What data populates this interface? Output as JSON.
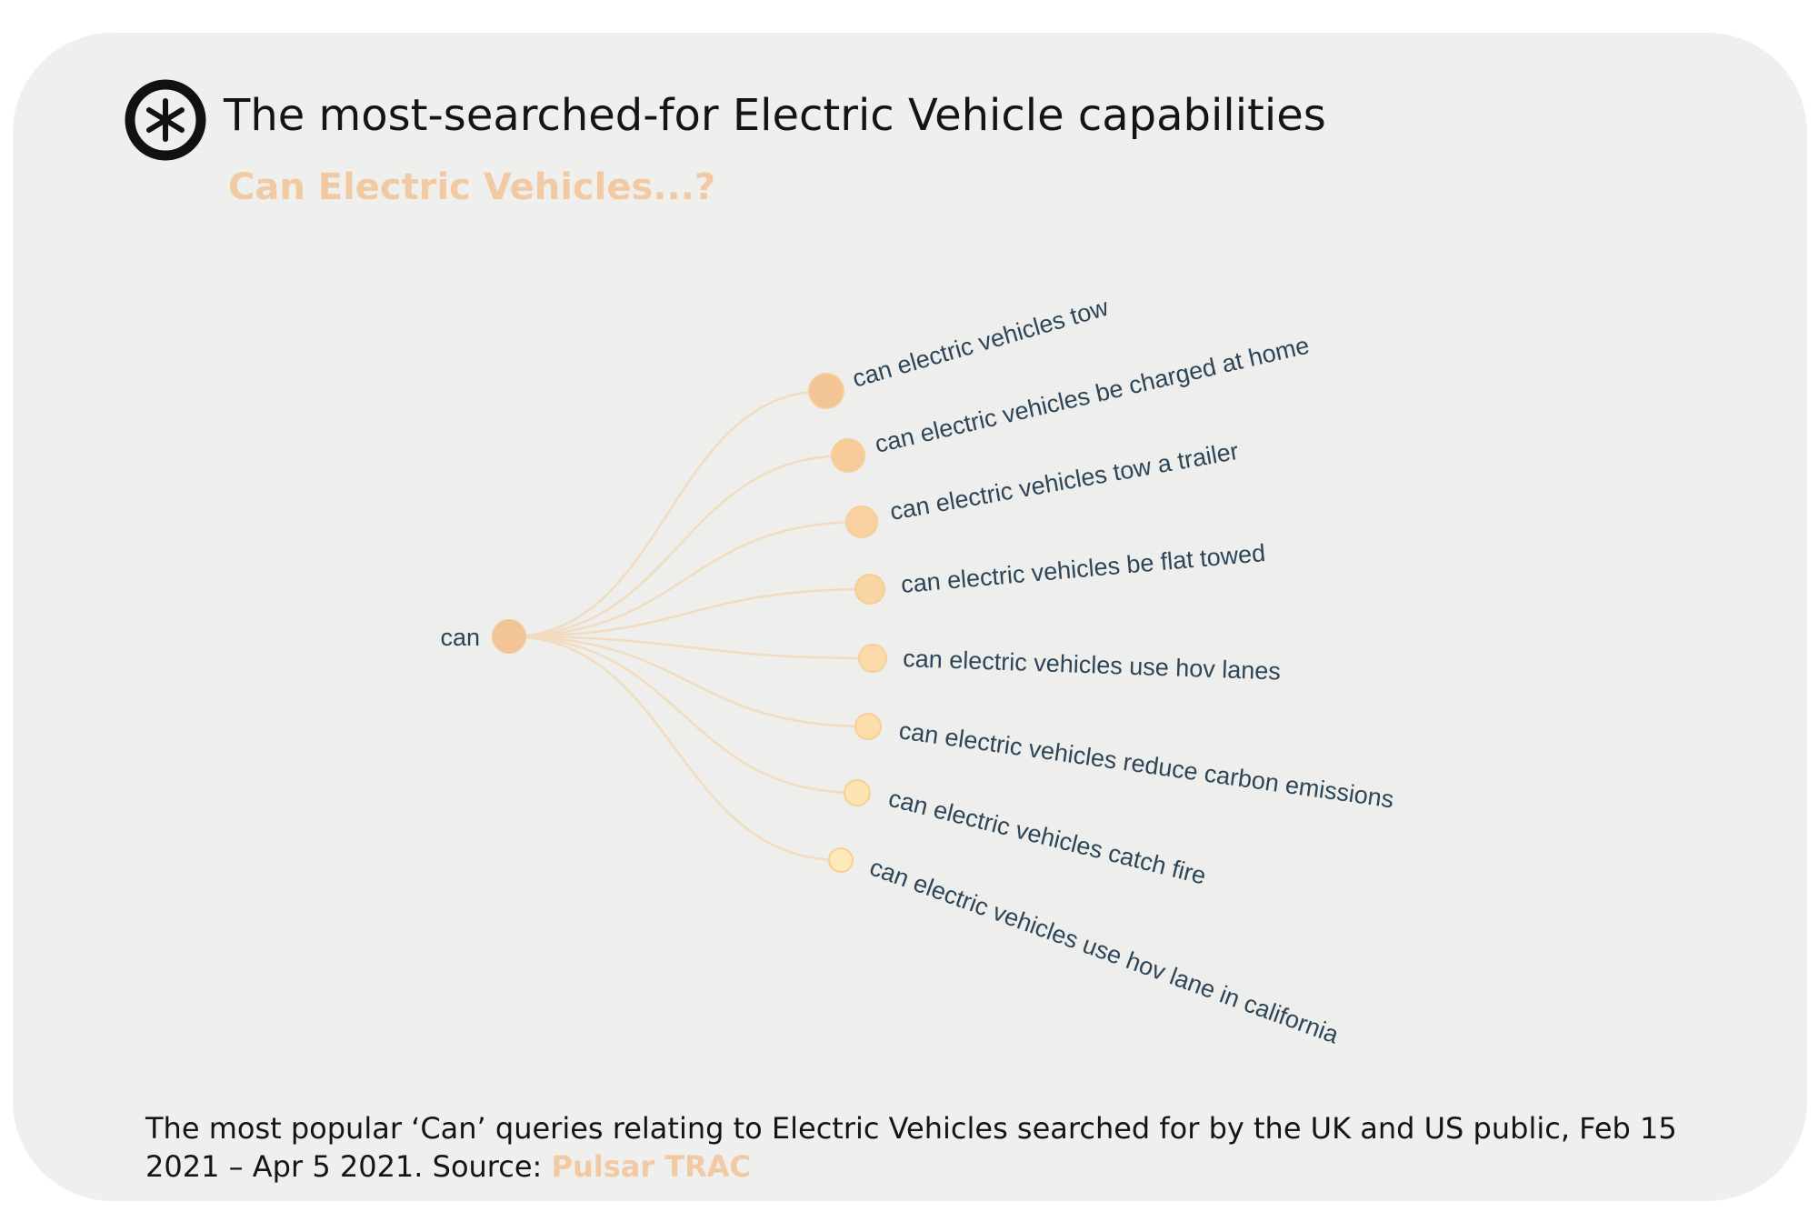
{
  "header": {
    "title": "The most-searched-for Electric Vehicle capabilities",
    "subtitle": "Can Electric Vehicles...?"
  },
  "logo": {
    "icon": "asterisk-circle-logo-icon"
  },
  "tree": {
    "root": {
      "label": "can",
      "color": "#f3c496"
    },
    "children": [
      {
        "label": "can electric vehicles tow",
        "color": "#f3c496"
      },
      {
        "label": "can electric vehicles be charged at home",
        "color": "#f7cb9a"
      },
      {
        "label": "can electric vehicles tow a trailer",
        "color": "#f9d09f"
      },
      {
        "label": "can electric vehicles be flat towed",
        "color": "#fad5a4"
      },
      {
        "label": "can electric vehicles use hov lanes",
        "color": "#fbd9a8"
      },
      {
        "label": "can electric vehicles reduce carbon emissions",
        "color": "#fcdead"
      },
      {
        "label": "can electric vehicles catch fire",
        "color": "#fde4b3"
      },
      {
        "label": "can electric vehicles use hov lane in california",
        "color": "#fee9b9"
      }
    ],
    "link_color": "#f2dcc0"
  },
  "footer": {
    "caption": "The most popular ‘Can’ queries relating to Electric Vehicles searched for by the UK and US public, Feb 15 2021 – Apr 5 2021. Source: ",
    "source": "Pulsar TRAC"
  }
}
